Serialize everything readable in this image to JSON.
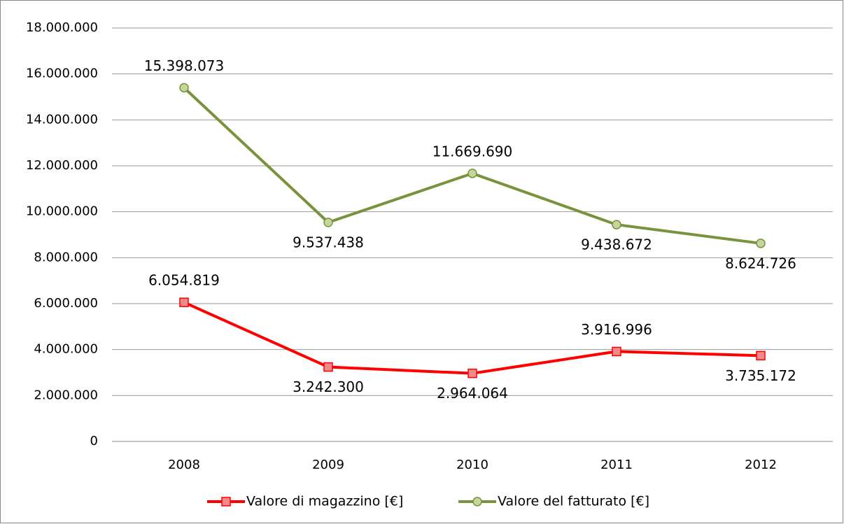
{
  "chart_data": {
    "type": "line",
    "categories": [
      "2008",
      "2009",
      "2010",
      "2011",
      "2012"
    ],
    "series": [
      {
        "name": "Valore di magazzino  [€]",
        "color": "#ff0000",
        "marker": "square",
        "marker_fill": "#f08a8a",
        "values": [
          6054819,
          3242300,
          2964064,
          3916996,
          3735172
        ],
        "value_labels": [
          "6.054.819",
          "3.242.300",
          "2.964.064",
          "3.916.996",
          "3.735.172"
        ]
      },
      {
        "name": "Valore del fatturato [€]",
        "color": "#77933c",
        "marker": "circle",
        "marker_fill": "#c3d69b",
        "values": [
          15398073,
          9537438,
          11669690,
          9438672,
          8624726
        ],
        "value_labels": [
          "15.398.073",
          "9.537.438",
          "11.669.690",
          "9.438.672",
          "8.624.726"
        ]
      }
    ],
    "ylim": [
      0,
      18000000
    ],
    "yticks": [
      0,
      {
        "value": 2000000,
        "label": "2.000.000"
      },
      {
        "value": 4000000,
        "label": "4.000.000"
      },
      {
        "value": 6000000,
        "label": "6.000.000"
      },
      {
        "value": 8000000,
        "label": "8.000.000"
      },
      {
        "value": 10000000,
        "label": "10.000.000"
      },
      {
        "value": 12000000,
        "label": "12.000.000"
      },
      {
        "value": 14000000,
        "label": "14.000.000"
      },
      {
        "value": 16000000,
        "label": "16.000.000"
      },
      {
        "value": 18000000,
        "label": "18.000.000"
      }
    ],
    "grid": true,
    "legend": "bottom"
  }
}
